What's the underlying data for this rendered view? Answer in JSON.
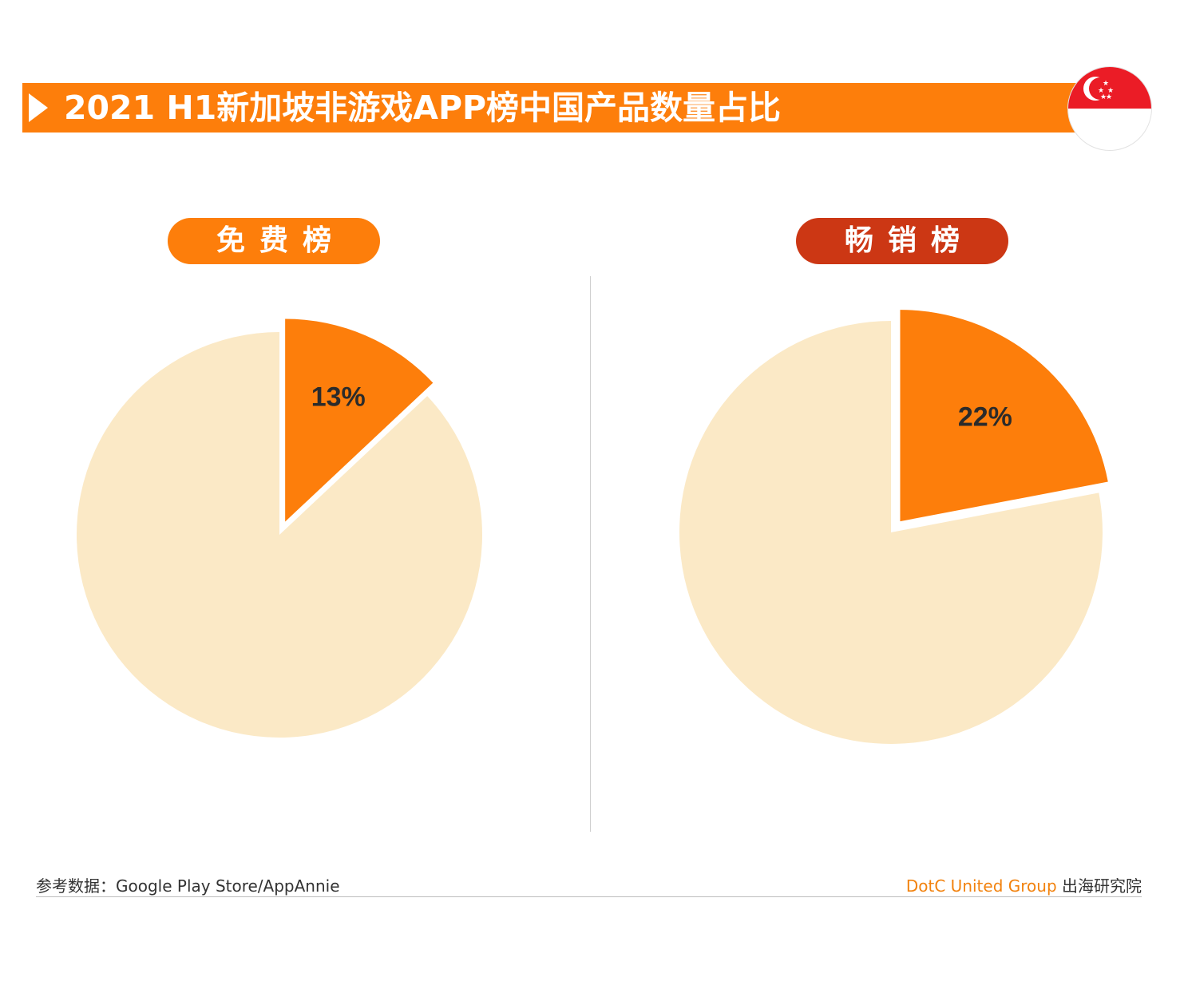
{
  "title": "2021 H1新加坡非游戏APP榜中国产品数量占比",
  "colors": {
    "accent": "#fd7e0b",
    "paid_accent": "#cc3714",
    "slice_rest": "#fbe9c6",
    "flag_red": "#eb1c26"
  },
  "icons": {
    "title_marker": "play-triangle-icon",
    "flag": "singapore-flag-icon"
  },
  "labels": {
    "free": "免费榜",
    "paid": "畅销榜"
  },
  "chart_data": [
    {
      "type": "pie",
      "title": "免费榜",
      "slices": [
        {
          "label": "13%",
          "value": 13,
          "color": "#fd7e0b",
          "exploded": true
        },
        {
          "label": "",
          "value": 87,
          "color": "#fbe9c6"
        }
      ]
    },
    {
      "type": "pie",
      "title": "畅销榜",
      "slices": [
        {
          "label": "22%",
          "value": 22,
          "color": "#fd7e0b",
          "exploded": true
        },
        {
          "label": "",
          "value": 78,
          "color": "#fbe9c6"
        }
      ]
    }
  ],
  "footer": {
    "source": "参考数据：Google Play Store/AppAnnie",
    "brand_en": "DotC United Group",
    "brand_cn": "出海研究院"
  }
}
